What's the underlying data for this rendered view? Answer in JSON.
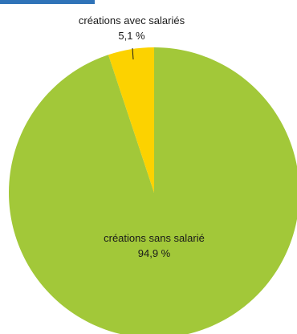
{
  "chart_data": {
    "type": "pie",
    "title": "",
    "slices": [
      {
        "label": "créations sans salarié",
        "value_label": "94,9 %",
        "value": 94.9,
        "color": "#a2c839"
      },
      {
        "label": "créations avec salariés",
        "value_label": "5,1 %",
        "value": 5.1,
        "color": "#fcd200"
      }
    ],
    "accent_color": "#2f73b8"
  }
}
